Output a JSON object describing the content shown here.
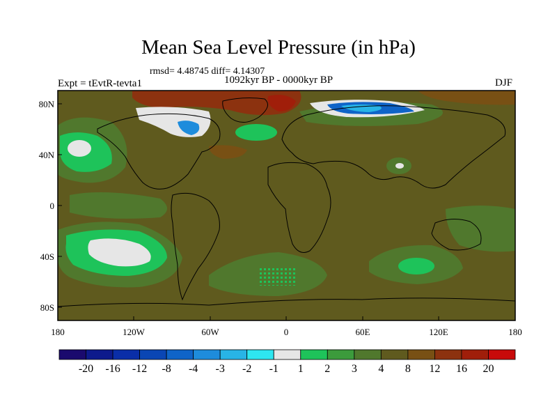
{
  "title": "Mean Sea Level Pressure (in hPa)",
  "stats": "rmsd= 4.48745 diff= 4.14307",
  "period": "1092kyr BP - 0000kyr BP",
  "experiment": "Expt = tEvtR-tevta1",
  "season": "DJF",
  "lat_labels": [
    "80N",
    "40N",
    "0",
    "40S",
    "80S"
  ],
  "lon_labels": [
    "180",
    "120W",
    "60W",
    "0",
    "60E",
    "120E",
    "180"
  ],
  "colorbar": {
    "labels": [
      "-20",
      "-16",
      "-12",
      "-8",
      "-4",
      "-3",
      "-2",
      "-1",
      "1",
      "2",
      "3",
      "4",
      "8",
      "12",
      "16",
      "20"
    ],
    "colors": [
      "#1a0a6e",
      "#0d1a8c",
      "#0a2ea8",
      "#0a46b4",
      "#0f64c8",
      "#1e8cdc",
      "#28b4e6",
      "#2ee6f0",
      "#e6e6e6",
      "#1ec35a",
      "#3c9b3c",
      "#50782d",
      "#5f5a1e",
      "#785014",
      "#8c320f",
      "#a01e0a",
      "#c80a0a"
    ]
  },
  "palette": {
    "base_brown": "#5f5a1e",
    "green": "#50782d",
    "light_green": "#1ec35a",
    "white": "#e6e6e6",
    "red_brown": "#8c320f",
    "blue": "#0f64c8",
    "cyan": "#28b4e6"
  }
}
